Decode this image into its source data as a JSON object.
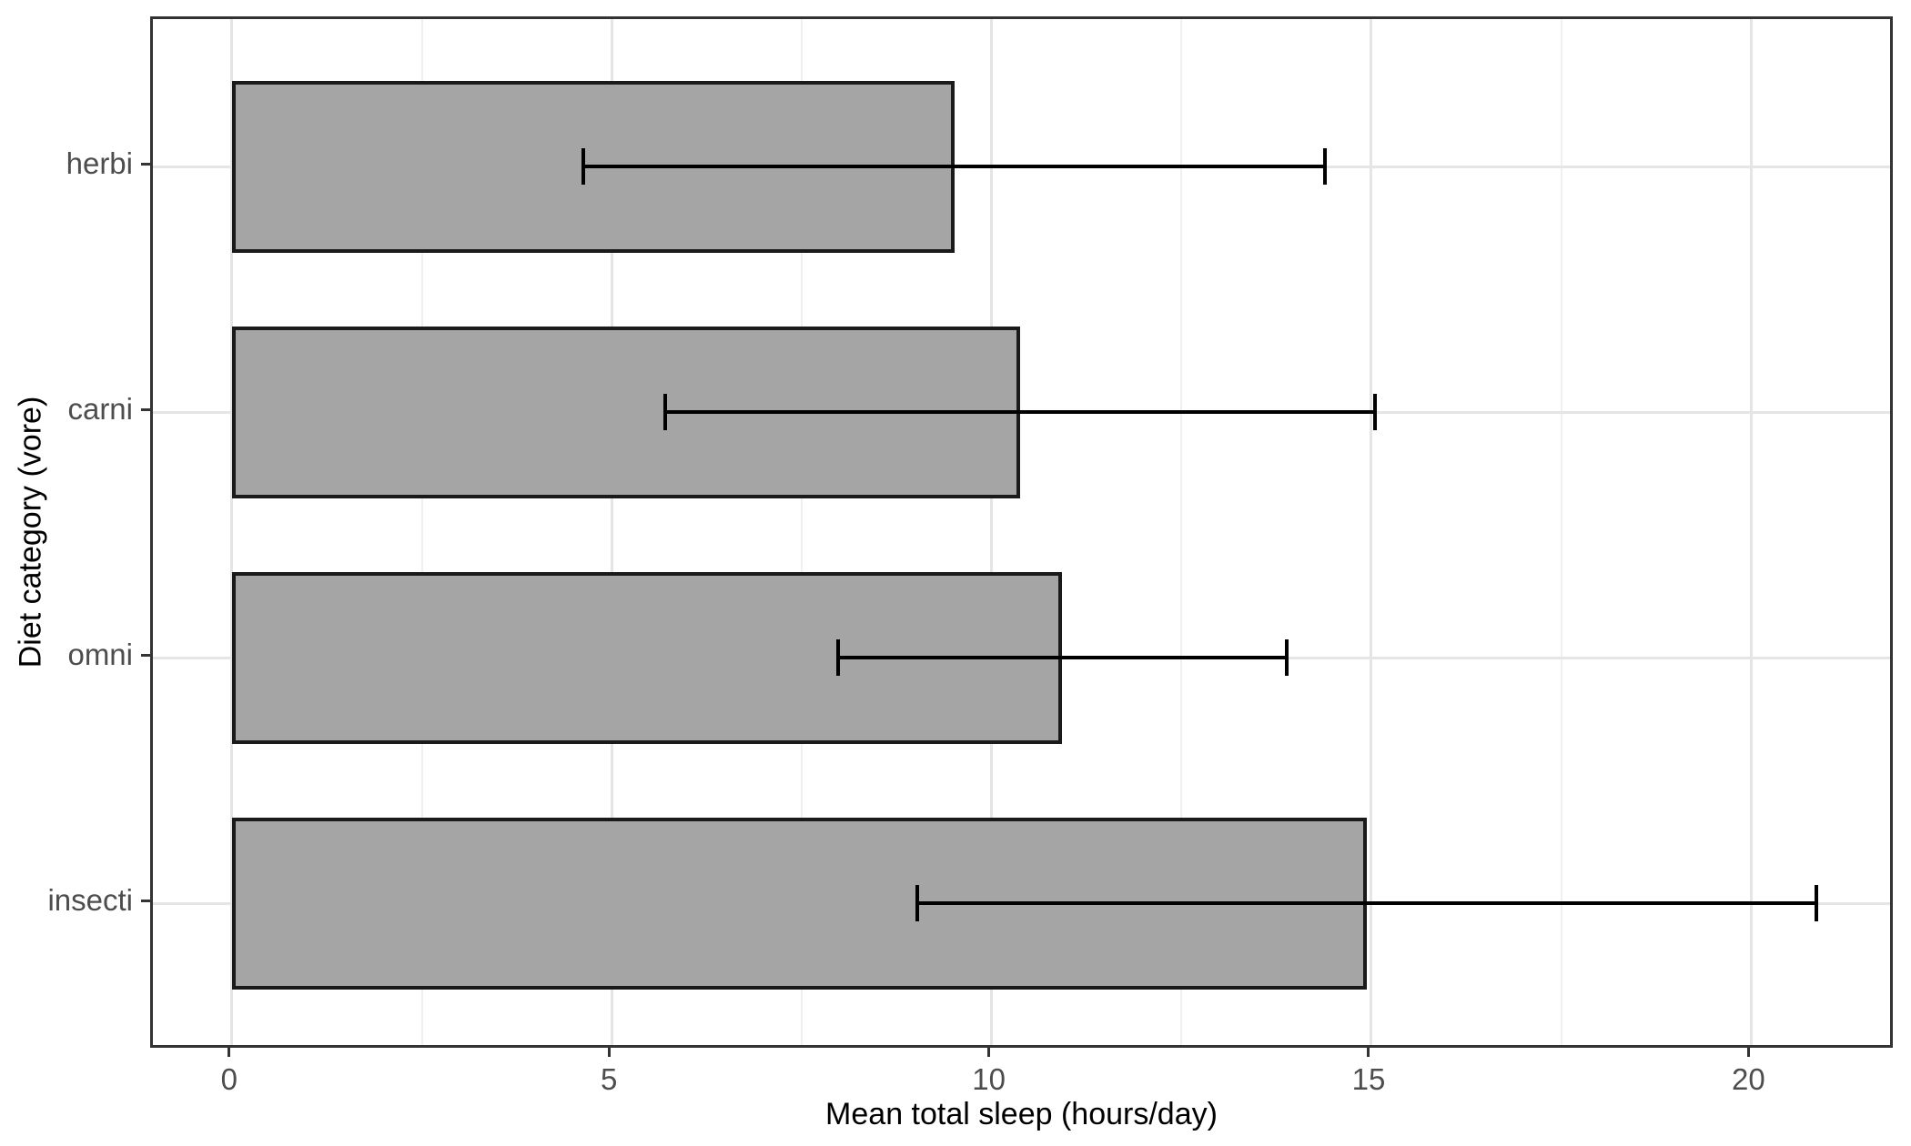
{
  "figure": {
    "background": "#ffffff"
  },
  "chart_data": {
    "type": "bar",
    "orientation": "horizontal",
    "title": "",
    "xlabel": "Mean total sleep (hours/day)",
    "ylabel": "Diet category (vore)",
    "categories": [
      "herbi",
      "carni",
      "omni",
      "insecti"
    ],
    "series": [
      {
        "name": "Mean total sleep (hours/day)",
        "values": [
          9.51,
          10.38,
          10.93,
          14.94
        ]
      }
    ],
    "error_bars": {
      "low": [
        4.63,
        5.71,
        7.98,
        9.02
      ],
      "high": [
        14.39,
        15.05,
        13.88,
        20.86
      ]
    },
    "xlim": [
      -1.04,
      21.9
    ],
    "x_major_ticks": [
      0,
      5,
      10,
      15,
      20
    ],
    "x_minor_gridlines": [
      2.5,
      7.5,
      12.5,
      17.5
    ],
    "grid": "major-and-minor-vertical, major-horizontal",
    "legend": "none",
    "band": {
      "expand_outer": 0.6,
      "bar_width": 0.7,
      "cap_width": 0.15
    },
    "colors": {
      "bar_fill": "#a5a5a5",
      "bar_stroke": "#1a1a1a",
      "errorbar": "#000000",
      "major_grid": "#e5e5e5",
      "minor_grid": "#f0f0f0",
      "panel_border": "#333333",
      "tick_mark": "#333333",
      "tick_label": "#4d4d4d",
      "axis_title": "#000000"
    }
  }
}
